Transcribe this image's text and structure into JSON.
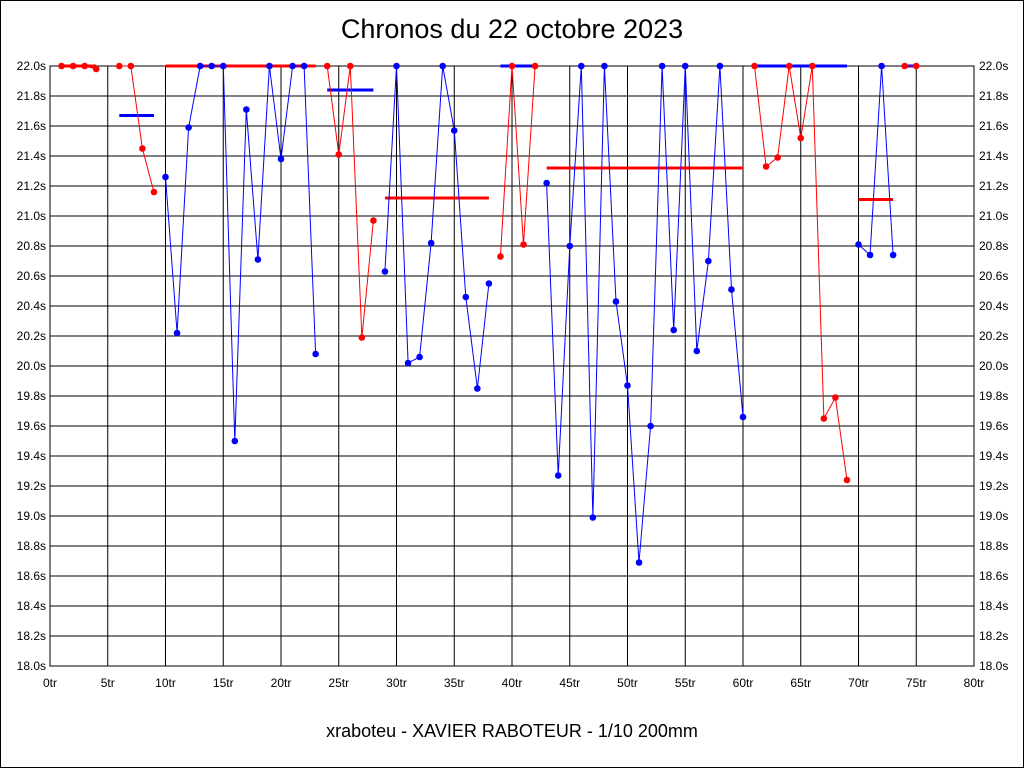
{
  "chart_data": {
    "type": "line",
    "title": "Chronos du 22 octobre 2023",
    "footer": "xraboteu - XAVIER RABOTEUR - 1/10 200mm",
    "x_tick_labels": [
      "0tr",
      "5tr",
      "10tr",
      "15tr",
      "20tr",
      "25tr",
      "30tr",
      "35tr",
      "40tr",
      "45tr",
      "50tr",
      "55tr",
      "60tr",
      "65tr",
      "70tr",
      "75tr",
      "80tr"
    ],
    "y_tick_labels": [
      "18.0s",
      "18.2s",
      "18.4s",
      "18.6s",
      "18.8s",
      "19.0s",
      "19.2s",
      "19.4s",
      "19.6s",
      "19.8s",
      "20.0s",
      "20.2s",
      "20.4s",
      "20.6s",
      "20.8s",
      "21.0s",
      "21.2s",
      "21.4s",
      "21.6s",
      "21.8s",
      "22.0s"
    ],
    "xlim": [
      0,
      80
    ],
    "ylim": [
      18.0,
      22.0
    ],
    "grid": true,
    "colors": {
      "red": "#ff0000",
      "blue": "#0000ff"
    },
    "series": [
      {
        "color": "red",
        "x": [
          1,
          2,
          3,
          4
        ],
        "y": [
          22.0,
          22.0,
          22.0,
          21.98
        ]
      },
      {
        "color": "red",
        "x": [
          6,
          7,
          8,
          9
        ],
        "y": [
          22.0,
          22.0,
          21.45,
          21.16
        ]
      },
      {
        "color": "blue",
        "x": [
          10,
          11,
          12,
          13,
          14,
          15,
          16,
          17,
          18,
          19,
          20,
          21,
          22,
          23
        ],
        "y": [
          21.26,
          20.22,
          21.59,
          22.0,
          22.0,
          22.0,
          19.5,
          21.71,
          20.71,
          22.0,
          21.38,
          22.0,
          22.0,
          20.08
        ]
      },
      {
        "color": "red",
        "x": [
          24,
          25,
          26,
          27,
          28
        ],
        "y": [
          22.0,
          21.41,
          22.0,
          20.19,
          20.97
        ]
      },
      {
        "color": "blue",
        "x": [
          29,
          30,
          31,
          32,
          33,
          34,
          35,
          36,
          37,
          38
        ],
        "y": [
          20.63,
          22.0,
          20.02,
          20.06,
          20.82,
          22.0,
          21.57,
          20.46,
          19.85,
          20.55
        ]
      },
      {
        "color": "red",
        "x": [
          39,
          40,
          41,
          42
        ],
        "y": [
          20.73,
          22.0,
          20.81,
          22.0
        ]
      },
      {
        "color": "blue",
        "x": [
          43,
          44,
          45,
          46,
          47,
          48,
          49,
          50,
          51,
          52,
          53,
          54,
          55,
          56,
          57,
          58,
          59,
          60
        ],
        "y": [
          21.22,
          19.27,
          20.8,
          22.0,
          18.99,
          22.0,
          20.43,
          19.87,
          18.69,
          19.6,
          22.0,
          20.24,
          22.0,
          20.1,
          20.7,
          22.0,
          20.51,
          19.66
        ]
      },
      {
        "color": "red",
        "x": [
          61,
          62,
          63,
          64,
          65,
          66,
          67,
          68,
          69
        ],
        "y": [
          22.0,
          21.33,
          21.39,
          22.0,
          21.52,
          22.0,
          19.65,
          19.79,
          19.24
        ]
      },
      {
        "color": "blue",
        "x": [
          70,
          71,
          72,
          73
        ],
        "y": [
          20.81,
          20.74,
          22.0,
          20.74
        ]
      },
      {
        "color": "red",
        "x": [
          74,
          75
        ],
        "y": [
          22.0,
          22.0
        ]
      }
    ],
    "averages": [
      {
        "color": "red",
        "x": [
          0.8,
          4.0
        ],
        "y": 22.0
      },
      {
        "color": "blue",
        "x": [
          6.0,
          9.0
        ],
        "y": 21.67
      },
      {
        "color": "red",
        "x": [
          10.0,
          23.0
        ],
        "y": 22.0
      },
      {
        "color": "blue",
        "x": [
          24.0,
          28.0
        ],
        "y": 21.84
      },
      {
        "color": "red",
        "x": [
          29.0,
          38.0
        ],
        "y": 21.12
      },
      {
        "color": "blue",
        "x": [
          39.0,
          42.0
        ],
        "y": 22.0
      },
      {
        "color": "red",
        "x": [
          43.0,
          60.0
        ],
        "y": 21.32
      },
      {
        "color": "blue",
        "x": [
          61.0,
          69.0
        ],
        "y": 22.0
      },
      {
        "color": "red",
        "x": [
          70.0,
          73.0
        ],
        "y": 21.11
      },
      {
        "color": "blue",
        "x": [
          74.0,
          75.0
        ],
        "y": 22.0
      }
    ]
  }
}
